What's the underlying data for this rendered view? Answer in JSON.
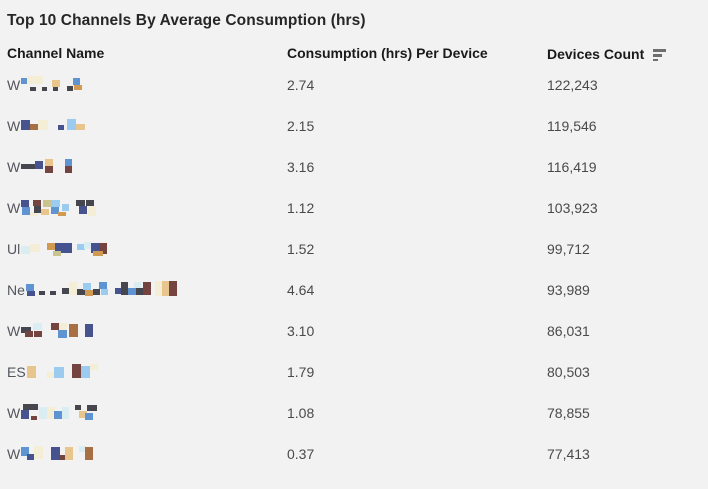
{
  "title": "Top 10 Channels By Average Consumption (hrs)",
  "columns": {
    "channel": "Channel Name",
    "consumption": "Consumption (hrs) Per Device",
    "devices": "Devices Count"
  },
  "icons": {
    "devices_sort": "sort-descending-icon"
  },
  "colors": {
    "background": "#f2f2f2",
    "title_text": "#262626",
    "header_text": "#1a1a1a",
    "cell_text": "#4a4a4a",
    "sort_icon": "#6e6e6e"
  },
  "palette": {
    "db": "#46464e",
    "nv": "#47538e",
    "bl": "#5f93d1",
    "lb": "#9bccf0",
    "cy": "#d9edf2",
    "cr": "#f4eed6",
    "tn": "#e9c58e",
    "or": "#d09a52",
    "br": "#a86f45",
    "mr": "#744441",
    "kh": "#c9c48e"
  },
  "rows": [
    {
      "channel_prefix": "W",
      "channel_redacted": true,
      "consumption": "2.74",
      "devices": "122,243",
      "mosaic": [
        [
          0,
          2,
          6,
          6,
          "bl"
        ],
        [
          6,
          0,
          16,
          8,
          "cr"
        ],
        [
          9,
          11,
          6,
          4,
          "db"
        ],
        [
          21,
          11,
          5,
          4,
          "db"
        ],
        [
          31,
          4,
          8,
          7,
          "tn"
        ],
        [
          32,
          11,
          5,
          4,
          "db"
        ],
        [
          46,
          10,
          6,
          5,
          "db"
        ],
        [
          52,
          2,
          7,
          7,
          "bl"
        ],
        [
          53,
          9,
          8,
          5,
          "or"
        ]
      ]
    },
    {
      "channel_prefix": "W",
      "channel_redacted": true,
      "consumption": "2.15",
      "devices": "119,546",
      "mosaic": [
        [
          0,
          3,
          9,
          10,
          "nv"
        ],
        [
          9,
          7,
          8,
          6,
          "br"
        ],
        [
          17,
          3,
          10,
          10,
          "cr"
        ],
        [
          37,
          8,
          6,
          5,
          "nv"
        ],
        [
          46,
          2,
          9,
          11,
          "lb"
        ],
        [
          55,
          7,
          9,
          6,
          "tn"
        ]
      ]
    },
    {
      "channel_prefix": "W",
      "channel_redacted": true,
      "consumption": "3.16",
      "devices": "116,419",
      "mosaic": [
        [
          0,
          6,
          14,
          5,
          "db"
        ],
        [
          14,
          3,
          8,
          8,
          "nv"
        ],
        [
          24,
          1,
          8,
          7,
          "tn"
        ],
        [
          24,
          8,
          8,
          7,
          "mr"
        ],
        [
          44,
          1,
          7,
          7,
          "bl"
        ],
        [
          44,
          8,
          7,
          7,
          "mr"
        ]
      ]
    },
    {
      "channel_prefix": "W",
      "channel_redacted": true,
      "consumption": "1.12",
      "devices": "103,923",
      "mosaic": [
        [
          0,
          1,
          8,
          7,
          "nv"
        ],
        [
          1,
          8,
          8,
          8,
          "bl"
        ],
        [
          9,
          13,
          8,
          4,
          "cr"
        ],
        [
          12,
          1,
          8,
          6,
          "mr"
        ],
        [
          13,
          7,
          7,
          7,
          "db"
        ],
        [
          20,
          10,
          8,
          6,
          "tn"
        ],
        [
          22,
          1,
          9,
          7,
          "kh"
        ],
        [
          30,
          8,
          8,
          7,
          "bl"
        ],
        [
          31,
          1,
          8,
          7,
          "lb"
        ],
        [
          37,
          13,
          8,
          4,
          "or"
        ],
        [
          41,
          5,
          7,
          7,
          "lb"
        ],
        [
          55,
          1,
          9,
          6,
          "db"
        ],
        [
          65,
          1,
          8,
          6,
          "db"
        ],
        [
          58,
          7,
          8,
          8,
          "nv"
        ],
        [
          67,
          7,
          8,
          10,
          "cr"
        ]
      ]
    },
    {
      "channel_prefix": "Ul",
      "channel_redacted": true,
      "consumption": "1.52",
      "devices": "99,712",
      "mosaic": [
        [
          0,
          6,
          9,
          8,
          "cy"
        ],
        [
          9,
          4,
          10,
          8,
          "cr"
        ],
        [
          26,
          3,
          8,
          7,
          "or"
        ],
        [
          34,
          3,
          9,
          10,
          "nv"
        ],
        [
          32,
          11,
          8,
          5,
          "kh"
        ],
        [
          43,
          3,
          8,
          10,
          "nv"
        ],
        [
          56,
          4,
          8,
          6,
          "lb"
        ],
        [
          63,
          2,
          7,
          7,
          "cy"
        ],
        [
          70,
          3,
          8,
          10,
          "nv"
        ],
        [
          78,
          3,
          8,
          11,
          "mr"
        ],
        [
          72,
          11,
          10,
          5,
          "or"
        ]
      ]
    },
    {
      "channel_prefix": "Ne",
      "channel_redacted": true,
      "consumption": "4.64",
      "devices": "93,989",
      "mosaic": [
        [
          0,
          3,
          8,
          7,
          "bl"
        ],
        [
          1,
          10,
          8,
          5,
          "nv"
        ],
        [
          13,
          10,
          6,
          4,
          "db"
        ],
        [
          24,
          10,
          6,
          4,
          "db"
        ],
        [
          36,
          7,
          7,
          6,
          "db"
        ],
        [
          43,
          1,
          8,
          13,
          "cr"
        ],
        [
          51,
          8,
          8,
          6,
          "db"
        ],
        [
          57,
          2,
          8,
          7,
          "lb"
        ],
        [
          59,
          9,
          8,
          6,
          "or"
        ],
        [
          67,
          8,
          7,
          6,
          "db"
        ],
        [
          73,
          1,
          8,
          7,
          "bl"
        ],
        [
          75,
          8,
          7,
          6,
          "lb"
        ],
        [
          89,
          7,
          7,
          6,
          "nv"
        ],
        [
          95,
          1,
          7,
          13,
          "db"
        ],
        [
          102,
          7,
          8,
          7,
          "bl"
        ],
        [
          108,
          1,
          7,
          6,
          "cy"
        ],
        [
          110,
          7,
          7,
          7,
          "db"
        ],
        [
          117,
          1,
          8,
          13,
          "mr"
        ],
        [
          129,
          0,
          8,
          15,
          "cr"
        ],
        [
          136,
          0,
          7,
          15,
          "tn"
        ],
        [
          143,
          0,
          8,
          15,
          "mr"
        ]
      ]
    },
    {
      "channel_prefix": "W",
      "channel_redacted": true,
      "consumption": "3.10",
      "devices": "86,031",
      "mosaic": [
        [
          0,
          5,
          10,
          6,
          "db"
        ],
        [
          12,
          1,
          9,
          7,
          "cy"
        ],
        [
          4,
          9,
          8,
          6,
          "mr"
        ],
        [
          13,
          9,
          8,
          6,
          "mr"
        ],
        [
          30,
          1,
          8,
          7,
          "mr"
        ],
        [
          38,
          1,
          8,
          7,
          "cr"
        ],
        [
          37,
          8,
          9,
          8,
          "bl"
        ],
        [
          48,
          2,
          9,
          13,
          "br"
        ],
        [
          64,
          2,
          8,
          13,
          "nv"
        ]
      ]
    },
    {
      "channel_prefix": "ES",
      "channel_redacted": true,
      "consumption": "1.79",
      "devices": "80,503",
      "mosaic": [
        [
          0,
          3,
          9,
          12,
          "tn"
        ],
        [
          20,
          9,
          7,
          6,
          "cr"
        ],
        [
          27,
          4,
          10,
          11,
          "lb"
        ],
        [
          45,
          1,
          9,
          14,
          "mr"
        ],
        [
          54,
          3,
          9,
          12,
          "lb"
        ],
        [
          63,
          1,
          8,
          6,
          "cr"
        ]
      ]
    },
    {
      "channel_prefix": "W",
      "channel_redacted": true,
      "consumption": "1.08",
      "devices": "78,855",
      "mosaic": [
        [
          2,
          0,
          15,
          6,
          "db"
        ],
        [
          0,
          6,
          8,
          9,
          "nv"
        ],
        [
          10,
          12,
          6,
          4,
          "mr"
        ],
        [
          18,
          3,
          8,
          12,
          "cy"
        ],
        [
          26,
          3,
          8,
          12,
          "cr"
        ],
        [
          33,
          7,
          8,
          8,
          "bl"
        ],
        [
          41,
          3,
          7,
          12,
          "cy"
        ],
        [
          54,
          1,
          6,
          5,
          "db"
        ],
        [
          58,
          7,
          8,
          7,
          "tn"
        ],
        [
          66,
          1,
          10,
          6,
          "db"
        ],
        [
          64,
          9,
          8,
          7,
          "bl"
        ]
      ]
    },
    {
      "channel_prefix": "W",
      "channel_redacted": true,
      "consumption": "0.37",
      "devices": "77,413",
      "mosaic": [
        [
          0,
          2,
          8,
          9,
          "bl"
        ],
        [
          6,
          9,
          7,
          6,
          "nv"
        ],
        [
          13,
          1,
          9,
          13,
          "cr"
        ],
        [
          30,
          2,
          9,
          13,
          "nv"
        ],
        [
          38,
          10,
          6,
          5,
          "mr"
        ],
        [
          44,
          2,
          8,
          13,
          "tn"
        ],
        [
          58,
          1,
          7,
          6,
          "cy"
        ],
        [
          64,
          2,
          8,
          13,
          "br"
        ]
      ]
    }
  ],
  "chart_data": {
    "type": "table",
    "title": "Top 10 Channels By Average Consumption (hrs)",
    "columns": [
      "Channel Name",
      "Consumption (hrs) Per Device",
      "Devices Count"
    ],
    "channel_prefixes": [
      "W",
      "W",
      "W",
      "W",
      "Ul",
      "Ne",
      "W",
      "ES",
      "W",
      "W"
    ],
    "consumption_hrs_per_device": [
      2.74,
      2.15,
      3.16,
      1.12,
      1.52,
      4.64,
      3.1,
      1.79,
      1.08,
      0.37
    ],
    "devices_count": [
      122243,
      119546,
      116419,
      103923,
      99712,
      93989,
      86031,
      80503,
      78855,
      77413
    ],
    "sorted_by": "Devices Count descending",
    "note_channel_names_redacted": true
  }
}
